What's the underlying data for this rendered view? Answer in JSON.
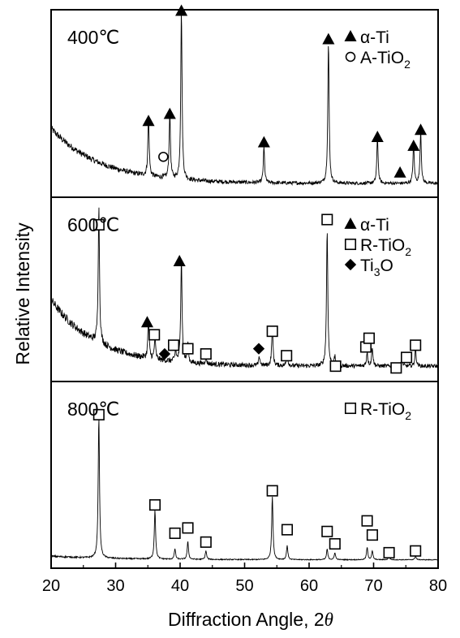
{
  "chart_data": {
    "type": "line",
    "xlabel_main": "Diffraction Angle, 2",
    "xlabel_symbol": "θ",
    "ylabel": "Relative Intensity",
    "xlim": [
      20,
      80
    ],
    "x_ticks": [
      20,
      30,
      40,
      50,
      60,
      70,
      80
    ],
    "panels": [
      {
        "temperature_label": "400℃",
        "legend": [
          {
            "marker": "triangle",
            "label": "α-Ti",
            "subscript": ""
          },
          {
            "marker": "circle",
            "label": "A-TiO",
            "subscript": "2"
          }
        ],
        "baseline": {
          "start": 0.36,
          "end": 0.05,
          "decay": 0.13,
          "noise": 0.02
        },
        "peaks": [
          {
            "x": 35.1,
            "h": 0.33,
            "phase": "α-Ti"
          },
          {
            "x": 38.4,
            "h": 0.37,
            "phase": "α-Ti"
          },
          {
            "x": 40.2,
            "h": 0.95,
            "phase": "α-Ti"
          },
          {
            "x": 53.0,
            "h": 0.2,
            "phase": "α-Ti"
          },
          {
            "x": 63.0,
            "h": 0.79,
            "phase": "α-Ti"
          },
          {
            "x": 70.6,
            "h": 0.26,
            "phase": "α-Ti"
          },
          {
            "x": 76.2,
            "h": 0.22,
            "phase": "α-Ti"
          },
          {
            "x": 77.3,
            "h": 0.29,
            "phase": "α-Ti"
          }
        ],
        "markers": [
          {
            "x": 35.1,
            "y": 0.4,
            "marker": "triangle"
          },
          {
            "x": 38.4,
            "y": 0.44,
            "marker": "triangle"
          },
          {
            "x": 40.2,
            "y": 1.02,
            "marker": "triangle"
          },
          {
            "x": 53.0,
            "y": 0.28,
            "marker": "triangle"
          },
          {
            "x": 63.0,
            "y": 0.86,
            "marker": "triangle"
          },
          {
            "x": 70.6,
            "y": 0.31,
            "marker": "triangle"
          },
          {
            "x": 74.1,
            "y": 0.11,
            "marker": "triangle"
          },
          {
            "x": 76.2,
            "y": 0.26,
            "marker": "triangle"
          },
          {
            "x": 77.3,
            "y": 0.35,
            "marker": "triangle"
          },
          {
            "x": 37.4,
            "y": 0.2,
            "marker": "circle"
          }
        ]
      },
      {
        "temperature_label": "600℃",
        "legend": [
          {
            "marker": "triangle",
            "label": "α-Ti",
            "subscript": ""
          },
          {
            "marker": "square",
            "label": "R-TiO",
            "subscript": "2"
          },
          {
            "marker": "diamond",
            "label": "Ti",
            "subscript": "3",
            "suffix": "O"
          }
        ],
        "baseline": {
          "start": 0.44,
          "end": 0.06,
          "decay": 0.14,
          "noise": 0.025
        },
        "peaks": [
          {
            "x": 27.4,
            "h": 0.78
          },
          {
            "x": 35.1,
            "h": 0.22
          },
          {
            "x": 36.1,
            "h": 0.12
          },
          {
            "x": 39.3,
            "h": 0.06
          },
          {
            "x": 40.2,
            "h": 0.6
          },
          {
            "x": 41.2,
            "h": 0.1
          },
          {
            "x": 44.0,
            "h": 0.04
          },
          {
            "x": 52.3,
            "h": 0.05
          },
          {
            "x": 54.3,
            "h": 0.22
          },
          {
            "x": 56.6,
            "h": 0.07
          },
          {
            "x": 62.8,
            "h": 0.78
          },
          {
            "x": 64.0,
            "h": 0.05
          },
          {
            "x": 69.0,
            "h": 0.08
          },
          {
            "x": 69.8,
            "h": 0.11
          },
          {
            "x": 74.4,
            "h": 0.04
          },
          {
            "x": 76.5,
            "h": 0.1
          }
        ],
        "markers": [
          {
            "x": 27.4,
            "y": 0.87,
            "marker": "square"
          },
          {
            "x": 34.9,
            "y": 0.31,
            "marker": "triangle"
          },
          {
            "x": 36.0,
            "y": 0.24,
            "marker": "square"
          },
          {
            "x": 37.6,
            "y": 0.13,
            "marker": "diamond"
          },
          {
            "x": 39.0,
            "y": 0.18,
            "marker": "square"
          },
          {
            "x": 39.9,
            "y": 0.66,
            "marker": "triangle"
          },
          {
            "x": 41.2,
            "y": 0.16,
            "marker": "square"
          },
          {
            "x": 44.0,
            "y": 0.13,
            "marker": "square"
          },
          {
            "x": 52.2,
            "y": 0.16,
            "marker": "diamond"
          },
          {
            "x": 54.3,
            "y": 0.26,
            "marker": "square"
          },
          {
            "x": 56.5,
            "y": 0.12,
            "marker": "square"
          },
          {
            "x": 62.8,
            "y": 0.9,
            "marker": "square"
          },
          {
            "x": 64.1,
            "y": 0.06,
            "marker": "square"
          },
          {
            "x": 68.8,
            "y": 0.17,
            "marker": "square"
          },
          {
            "x": 69.3,
            "y": 0.22,
            "marker": "square"
          },
          {
            "x": 73.5,
            "y": 0.05,
            "marker": "square"
          },
          {
            "x": 75.1,
            "y": 0.11,
            "marker": "square"
          },
          {
            "x": 76.5,
            "y": 0.18,
            "marker": "square"
          }
        ]
      },
      {
        "temperature_label": "800℃",
        "legend": [
          {
            "marker": "square",
            "label": "R-TiO",
            "subscript": "2"
          }
        ],
        "baseline": {
          "start": 0.04,
          "end": 0.02,
          "decay": 0.1,
          "noise": 0.005
        },
        "peaks": [
          {
            "x": 27.4,
            "h": 0.8
          },
          {
            "x": 36.1,
            "h": 0.28
          },
          {
            "x": 39.2,
            "h": 0.06
          },
          {
            "x": 41.2,
            "h": 0.1
          },
          {
            "x": 44.0,
            "h": 0.05
          },
          {
            "x": 54.3,
            "h": 0.36
          },
          {
            "x": 56.6,
            "h": 0.08
          },
          {
            "x": 62.8,
            "h": 0.06
          },
          {
            "x": 64.0,
            "h": 0.04
          },
          {
            "x": 69.0,
            "h": 0.07
          },
          {
            "x": 69.8,
            "h": 0.05
          },
          {
            "x": 72.4,
            "h": 0.02
          },
          {
            "x": 76.5,
            "h": 0.02
          }
        ],
        "markers": [
          {
            "x": 27.4,
            "y": 0.84,
            "marker": "square"
          },
          {
            "x": 36.1,
            "y": 0.33,
            "marker": "square"
          },
          {
            "x": 39.2,
            "y": 0.17,
            "marker": "square"
          },
          {
            "x": 41.2,
            "y": 0.2,
            "marker": "square"
          },
          {
            "x": 44.0,
            "y": 0.12,
            "marker": "square"
          },
          {
            "x": 54.3,
            "y": 0.41,
            "marker": "square"
          },
          {
            "x": 56.6,
            "y": 0.19,
            "marker": "square"
          },
          {
            "x": 62.8,
            "y": 0.18,
            "marker": "square"
          },
          {
            "x": 64.0,
            "y": 0.11,
            "marker": "square"
          },
          {
            "x": 69.0,
            "y": 0.24,
            "marker": "square"
          },
          {
            "x": 69.8,
            "y": 0.16,
            "marker": "square"
          },
          {
            "x": 72.4,
            "y": 0.06,
            "marker": "square"
          },
          {
            "x": 76.5,
            "y": 0.07,
            "marker": "square"
          }
        ]
      }
    ]
  }
}
